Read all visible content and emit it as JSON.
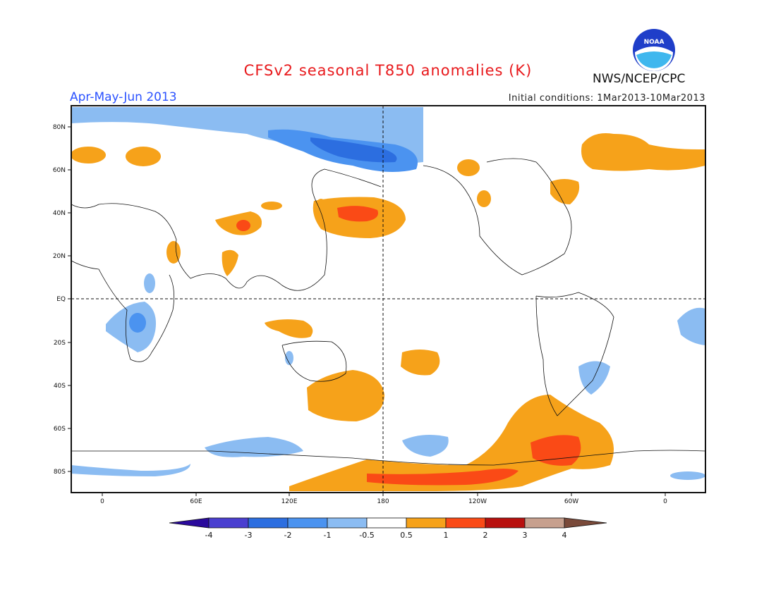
{
  "title": "CFSv2 seasonal T850 anomalies (K)",
  "season": "Apr-May-Jun 2013",
  "initial_conditions": "Initial conditions: 1Mar2013-10Mar2013",
  "agency": "NWS/NCEP/CPC",
  "logo_text": "NOAA",
  "colors": {
    "title": "#e8191c",
    "season": "#2b52ff",
    "levels": [
      "#2a0a9c",
      "#4a3fd0",
      "#2c6ee0",
      "#4b93f0",
      "#8bbcf2",
      "#ffffff",
      "#f6a21a",
      "#fa4a16",
      "#b8100e",
      "#c7a08e",
      "#7a4a3a"
    ]
  },
  "lat_ticks": [
    "80N",
    "60N",
    "40N",
    "20N",
    "EQ",
    "20S",
    "40S",
    "60S",
    "80S"
  ],
  "lon_ticks": [
    "0",
    "60E",
    "120E",
    "180",
    "120W",
    "60W",
    "0"
  ],
  "colorbar": {
    "labels": [
      "-4",
      "-3",
      "-2",
      "-1",
      "-0.5",
      "0.5",
      "1",
      "2",
      "3",
      "4"
    ]
  }
}
